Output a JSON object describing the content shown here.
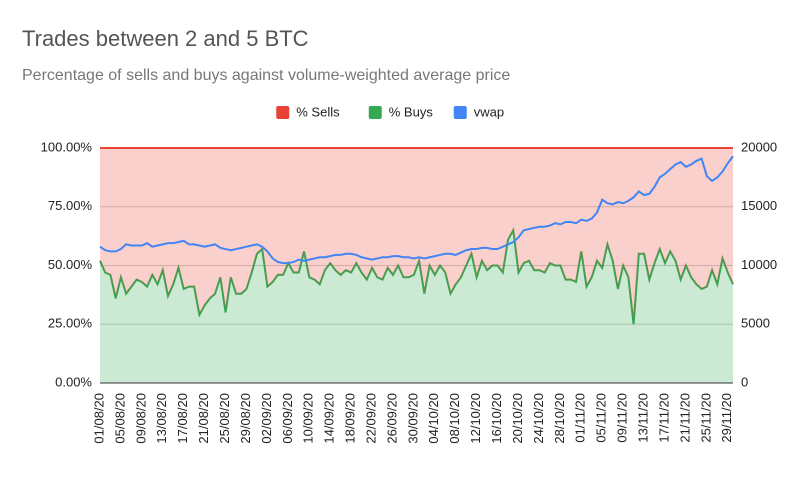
{
  "chart_data": {
    "type": "stacked_area",
    "title": "Trades between 2 and 5 BTC",
    "subtitle": "Percentage of sells and buys against volume-weighted average price",
    "categories": [
      "01/08/20",
      null,
      null,
      null,
      "05/08/20",
      null,
      null,
      null,
      "09/08/20",
      null,
      null,
      null,
      "13/08/20",
      null,
      null,
      null,
      "17/08/20",
      null,
      null,
      null,
      "21/08/20",
      null,
      null,
      null,
      "25/08/20",
      null,
      null,
      null,
      "29/08/20",
      null,
      null,
      null,
      "02/09/20",
      null,
      null,
      null,
      "06/09/20",
      null,
      null,
      null,
      "10/09/20",
      null,
      null,
      null,
      "14/09/20",
      null,
      null,
      null,
      "18/09/20",
      null,
      null,
      null,
      "22/09/20",
      null,
      null,
      null,
      "26/09/20",
      null,
      null,
      null,
      "30/09/20",
      null,
      null,
      null,
      "04/10/20",
      null,
      null,
      null,
      "08/10/20",
      null,
      null,
      null,
      "12/10/20",
      null,
      null,
      null,
      "16/10/20",
      null,
      null,
      null,
      "20/10/20",
      null,
      null,
      null,
      "24/10/20",
      null,
      null,
      null,
      "28/10/20",
      null,
      null,
      null,
      "01/11/20",
      null,
      null,
      null,
      "05/11/20",
      null,
      null,
      null,
      "09/11/20",
      null,
      null,
      null,
      "13/11/20",
      null,
      null,
      null,
      "17/11/20",
      null,
      null,
      null,
      "21/11/20",
      null,
      null,
      null,
      "25/11/20",
      null,
      null,
      null,
      "29/11/20",
      null
    ],
    "series": [
      {
        "name": "% Sells",
        "color": "#ea4335",
        "values": [
          48,
          53,
          54,
          64,
          55,
          62,
          59,
          56,
          57,
          59,
          54,
          58,
          52,
          63,
          58,
          51,
          60,
          59,
          59,
          71,
          67,
          64,
          62,
          55,
          70,
          55,
          62,
          62,
          60,
          53,
          45,
          43,
          59,
          57,
          54,
          54,
          49,
          53,
          53,
          44,
          55,
          56,
          58,
          52,
          49,
          52,
          54,
          52,
          53,
          49,
          53,
          56,
          51,
          55,
          56,
          51,
          54,
          50,
          55,
          55,
          54,
          48,
          62,
          50,
          54,
          50,
          53,
          62,
          58,
          55,
          50,
          45,
          55,
          48,
          52,
          50,
          50,
          53,
          39,
          35,
          53,
          49,
          48,
          52,
          52,
          53,
          49,
          50,
          50,
          56,
          56,
          57,
          44,
          59,
          55,
          48,
          51,
          41,
          48,
          60,
          50,
          55,
          75,
          45,
          45,
          56,
          49,
          43,
          49,
          44,
          48,
          56,
          50,
          55,
          58,
          60,
          59,
          52,
          58,
          47,
          53,
          58
        ]
      },
      {
        "name": "% Buys",
        "color": "#34a853",
        "values": [
          52,
          47,
          46,
          36,
          45,
          38,
          41,
          44,
          43,
          41,
          46,
          42,
          48,
          37,
          42,
          49,
          40,
          41,
          41,
          29,
          33,
          36,
          38,
          45,
          30,
          45,
          38,
          38,
          40,
          47,
          55,
          57,
          41,
          43,
          46,
          46,
          51,
          47,
          47,
          56,
          45,
          44,
          42,
          48,
          51,
          48,
          46,
          48,
          47,
          51,
          47,
          44,
          49,
          45,
          44,
          49,
          46,
          50,
          45,
          45,
          46,
          52,
          38,
          50,
          46,
          50,
          47,
          38,
          42,
          45,
          50,
          55,
          45,
          52,
          48,
          50,
          50,
          47,
          61,
          65,
          47,
          51,
          52,
          48,
          48,
          47,
          51,
          50,
          50,
          44,
          44,
          43,
          56,
          41,
          45,
          52,
          49,
          59,
          52,
          40,
          50,
          45,
          25,
          55,
          55,
          44,
          51,
          57,
          51,
          56,
          52,
          44,
          50,
          45,
          42,
          40,
          41,
          48,
          42,
          53,
          47,
          42
        ]
      },
      {
        "name": "vwap",
        "color": "#4285f4",
        "axis": "y2",
        "values": [
          11600,
          11300,
          11200,
          11200,
          11400,
          11800,
          11700,
          11700,
          11700,
          11900,
          11600,
          11700,
          11800,
          11900,
          11900,
          12000,
          12100,
          11800,
          11800,
          11700,
          11600,
          11700,
          11800,
          11500,
          11400,
          11300,
          11400,
          11500,
          11600,
          11700,
          11800,
          11600,
          11200,
          10600,
          10300,
          10200,
          10200,
          10300,
          10500,
          10400,
          10500,
          10600,
          10700,
          10700,
          10800,
          10900,
          10900,
          11000,
          11000,
          10900,
          10700,
          10600,
          10500,
          10600,
          10700,
          10700,
          10800,
          10800,
          10700,
          10700,
          10600,
          10700,
          10600,
          10700,
          10800,
          10900,
          11000,
          11000,
          10900,
          11100,
          11300,
          11400,
          11400,
          11500,
          11500,
          11400,
          11400,
          11600,
          11800,
          12000,
          12400,
          13000,
          13100,
          13200,
          13300,
          13300,
          13400,
          13600,
          13500,
          13700,
          13700,
          13600,
          13900,
          13800,
          14000,
          14500,
          15600,
          15300,
          15200,
          15400,
          15300,
          15500,
          15800,
          16300,
          16000,
          16100,
          16700,
          17500,
          17800,
          18200,
          18600,
          18800,
          18400,
          18600,
          18900,
          19100,
          17600,
          17200,
          17500,
          18000,
          18700,
          19300
        ]
      }
    ],
    "ylim": [
      0,
      100
    ],
    "yticks": [
      {
        "value": 0,
        "label": "0.00%"
      },
      {
        "value": 25,
        "label": "25.00%"
      },
      {
        "value": 50,
        "label": "50.00%"
      },
      {
        "value": 75,
        "label": "75.00%"
      },
      {
        "value": 100,
        "label": "100.00%"
      }
    ],
    "y2lim": [
      0,
      20000
    ],
    "y2ticks": [
      0,
      5000,
      10000,
      15000,
      20000
    ],
    "grid": true,
    "legend": "top"
  }
}
